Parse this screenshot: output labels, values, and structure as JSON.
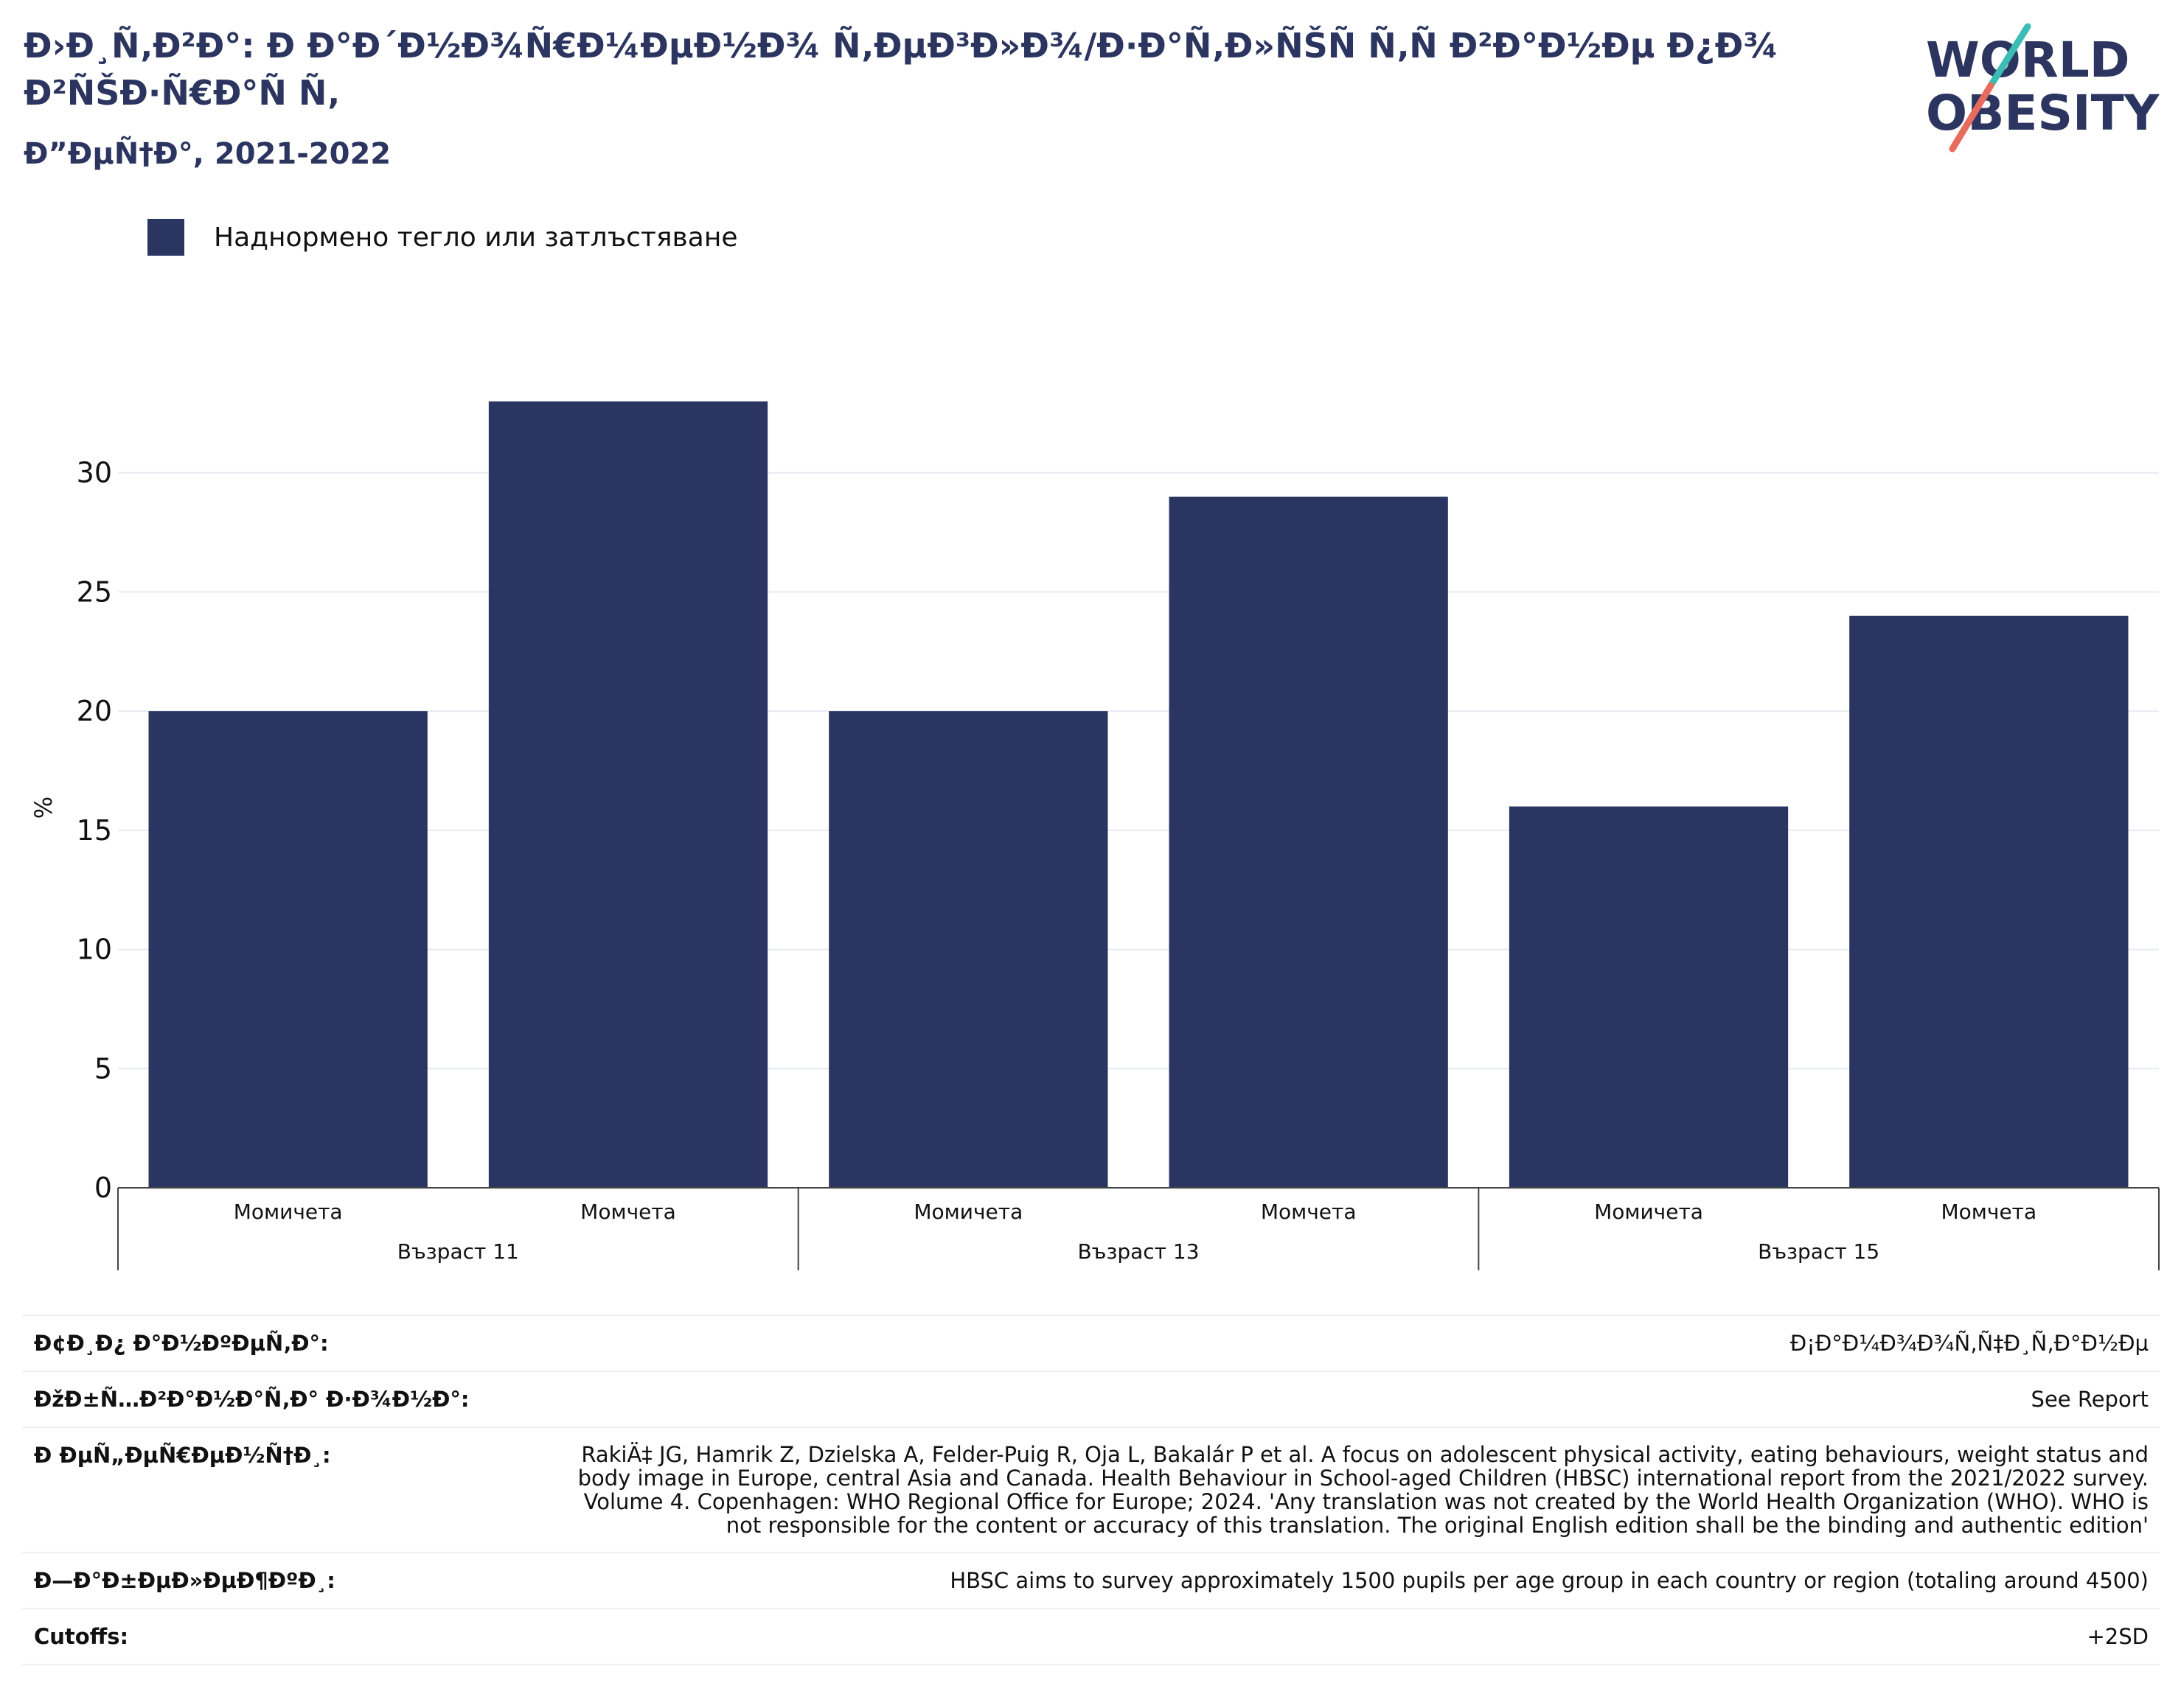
{
  "header": {
    "title": "Ð›Ð¸Ñ‚Ð²Ð°: Ð Ð°Ð´Ð½Ð¾Ñ€Ð¼ÐµÐ½Ð¾ Ñ‚ÐµÐ³Ð»Ð¾/Ð·Ð°Ñ‚Ð»ÑŠÑ Ñ‚Ñ Ð²Ð°Ð½Ðµ Ð¿Ð¾ Ð²ÑŠÐ·Ñ€Ð°Ñ Ñ‚",
    "subtitle": "Ð”ÐµÑ†Ð°, 2021-2022"
  },
  "logo": {
    "line1": "WORLD",
    "line2": "OBESITY"
  },
  "legend": {
    "label": "Наднормено тегло или затлъстяване",
    "color": "#2b3561"
  },
  "chart_data": {
    "type": "bar",
    "groups": [
      "Възраст 11",
      "Възраст 13",
      "Възраст 15"
    ],
    "categories": [
      "Момичета",
      "Момчета",
      "Момичета",
      "Момчета",
      "Момичета",
      "Момчета"
    ],
    "series": [
      {
        "name": "Наднормено тегло или затлъстяване",
        "values": [
          20,
          33,
          20,
          29,
          16,
          24
        ],
        "color": "#2b3561"
      }
    ],
    "ylabel": "%",
    "yticks": [
      0,
      5,
      10,
      15,
      20,
      25,
      30
    ],
    "ylim": [
      0,
      35
    ],
    "grid": true
  },
  "meta": [
    {
      "label": "Ð¢Ð¸Ð¿ Ð°Ð½ÐºÐµÑ‚Ð°:",
      "value": "Ð¡Ð°Ð¼Ð¾Ð¾Ñ‚Ñ‡Ð¸Ñ‚Ð°Ð½Ðµ"
    },
    {
      "label": "ÐžÐ±Ñ…Ð²Ð°Ð½Ð°Ñ‚Ð° Ð·Ð¾Ð½Ð°:",
      "value": "See Report"
    },
    {
      "label": "Ð ÐµÑ„ÐµÑ€ÐµÐ½Ñ†Ð¸:",
      "value": "RakiÄ‡ JG, Hamrik Z, Dzielska A, Felder-Puig R, Oja L, Bakalár P et al. A focus on adolescent physical activity, eating behaviours, weight status and body image in Europe, central Asia and Canada. Health Behaviour in School-aged Children (HBSC) international report from the 2021/2022 survey. Volume 4. Copenhagen: WHO Regional Office for Europe; 2024. 'Any translation was not created by the World Health Organization (WHO). WHO is not responsible for the content or accuracy of this translation. The original English edition shall be the binding and authentic edition'"
    },
    {
      "label": "Ð—Ð°Ð±ÐµÐ»ÐµÐ¶ÐºÐ¸:",
      "value": "HBSC aims to survey approximately 1500 pupils per age group in each country or region (totaling around 4500)"
    },
    {
      "label": "Cutoffs:",
      "value": "+2SD"
    }
  ]
}
